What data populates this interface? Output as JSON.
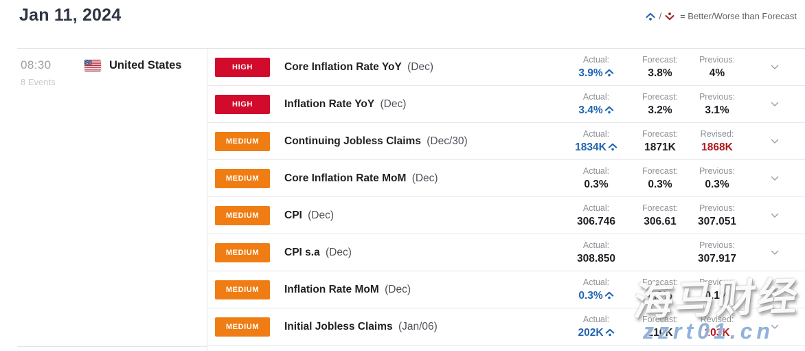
{
  "header": {
    "date_title": "Jan 11, 2024",
    "legend": {
      "separator": "/",
      "text": "= Better/Worse than Forecast",
      "better_icon": "caret-up-dot-icon",
      "worse_icon": "caret-down-dot-icon"
    }
  },
  "group": {
    "time": "08:30",
    "events_count": "8 Events",
    "country": "United States",
    "flag": "us-flag-icon"
  },
  "colors": {
    "high_badge": "#d20a2b",
    "medium_badge": "#f07d14",
    "better_value": "#2065b1",
    "revised_value": "#b0181f",
    "legend_better": "#2a66ad",
    "legend_worse": "#a8232b"
  },
  "events": [
    {
      "impact": "HIGH",
      "impact_level": "high",
      "name": "Core Inflation Rate YoY",
      "period": "(Dec)",
      "cols": [
        {
          "label": "Actual:",
          "value": "3.9%",
          "state": "better"
        },
        {
          "label": "Forecast:",
          "value": "3.8%",
          "state": "normal"
        },
        {
          "label": "Previous:",
          "value": "4%",
          "state": "normal"
        }
      ]
    },
    {
      "impact": "HIGH",
      "impact_level": "high",
      "name": "Inflation Rate YoY",
      "period": "(Dec)",
      "cols": [
        {
          "label": "Actual:",
          "value": "3.4%",
          "state": "better"
        },
        {
          "label": "Forecast:",
          "value": "3.2%",
          "state": "normal"
        },
        {
          "label": "Previous:",
          "value": "3.1%",
          "state": "normal"
        }
      ]
    },
    {
      "impact": "MEDIUM",
      "impact_level": "medium",
      "name": "Continuing Jobless Claims",
      "period": "(Dec/30)",
      "cols": [
        {
          "label": "Actual:",
          "value": "1834K",
          "state": "better"
        },
        {
          "label": "Forecast:",
          "value": "1871K",
          "state": "normal"
        },
        {
          "label": "Revised:",
          "value": "1868K",
          "state": "revised"
        }
      ]
    },
    {
      "impact": "MEDIUM",
      "impact_level": "medium",
      "name": "Core Inflation Rate MoM",
      "period": "(Dec)",
      "cols": [
        {
          "label": "Actual:",
          "value": "0.3%",
          "state": "normal"
        },
        {
          "label": "Forecast:",
          "value": "0.3%",
          "state": "normal"
        },
        {
          "label": "Previous:",
          "value": "0.3%",
          "state": "normal"
        }
      ]
    },
    {
      "impact": "MEDIUM",
      "impact_level": "medium",
      "name": "CPI",
      "period": "(Dec)",
      "cols": [
        {
          "label": "Actual:",
          "value": "306.746",
          "state": "normal"
        },
        {
          "label": "Forecast:",
          "value": "306.61",
          "state": "normal"
        },
        {
          "label": "Previous:",
          "value": "307.051",
          "state": "normal"
        }
      ]
    },
    {
      "impact": "MEDIUM",
      "impact_level": "medium",
      "name": "CPI s.a",
      "period": "(Dec)",
      "cols": [
        {
          "label": "Actual:",
          "value": "308.850",
          "state": "normal"
        },
        {
          "label": "",
          "value": "",
          "state": "empty"
        },
        {
          "label": "Previous:",
          "value": "307.917",
          "state": "normal"
        }
      ]
    },
    {
      "impact": "MEDIUM",
      "impact_level": "medium",
      "name": "Inflation Rate MoM",
      "period": "(Dec)",
      "cols": [
        {
          "label": "Actual:",
          "value": "0.3%",
          "state": "better"
        },
        {
          "label": "Forecast:",
          "value": "0.2%",
          "state": "normal"
        },
        {
          "label": "Previous:",
          "value": "0.1%",
          "state": "normal"
        }
      ]
    },
    {
      "impact": "MEDIUM",
      "impact_level": "medium",
      "name": "Initial Jobless Claims",
      "period": "(Jan/06)",
      "cols": [
        {
          "label": "Actual:",
          "value": "202K",
          "state": "better"
        },
        {
          "label": "Forecast:",
          "value": "210K",
          "state": "normal"
        },
        {
          "label": "Revised:",
          "value": "203K",
          "state": "revised"
        }
      ]
    }
  ],
  "watermark": {
    "cn_text": "海马财经",
    "domain_text": "zzrt01.cn"
  }
}
